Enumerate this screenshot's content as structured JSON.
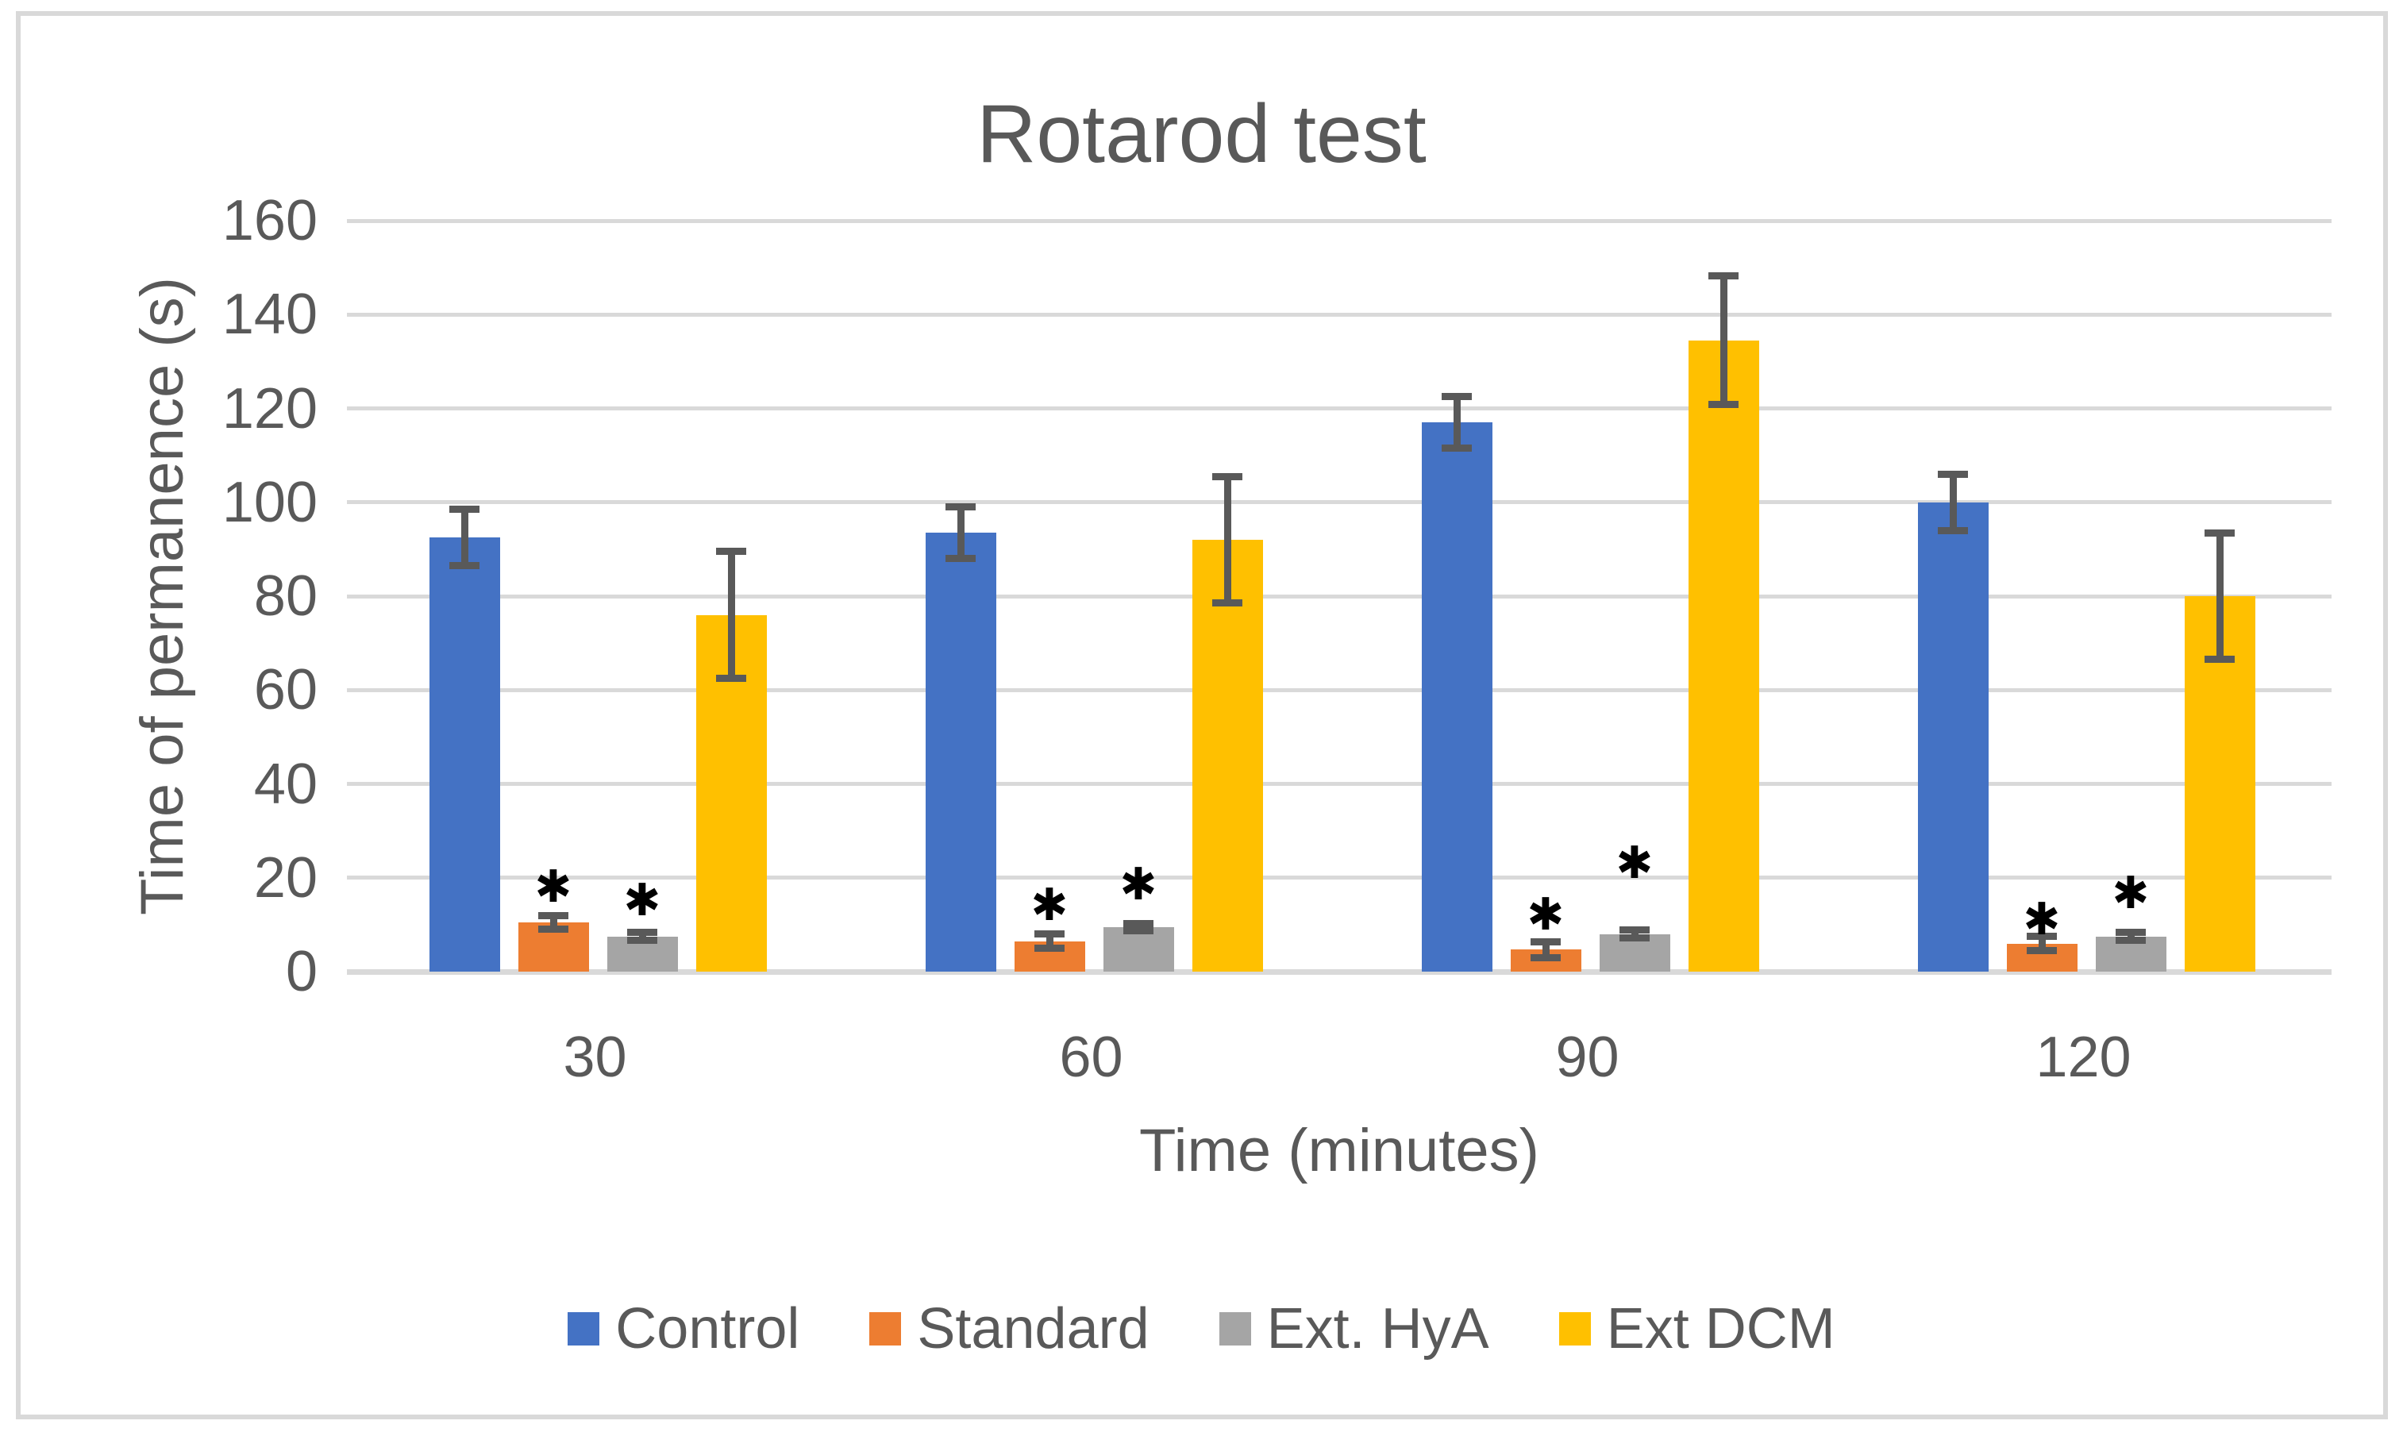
{
  "figure": {
    "title": "Rotarod test",
    "x_axis_title": "Time (minutes)",
    "y_axis_title": "Time of permanence (s)",
    "significance_marker": "✱"
  },
  "chart_data": {
    "type": "bar",
    "title": "Rotarod test",
    "xlabel": "Time (minutes)",
    "ylabel": "Time of permanence (s)",
    "categories": [
      "30",
      "60",
      "90",
      "120"
    ],
    "ylim": [
      0,
      160
    ],
    "ytick_step": 20,
    "y_tick_labels": [
      "0",
      "20",
      "40",
      "60",
      "80",
      "100",
      "120",
      "140",
      "160"
    ],
    "grid": "horizontal-gridlines",
    "legend_position": "bottom",
    "series": [
      {
        "name": "Control",
        "color": "#4472C4",
        "values": [
          92.5,
          93.5,
          117,
          100
        ],
        "error": [
          6,
          5.5,
          5.5,
          6
        ],
        "significant": [
          false,
          false,
          false,
          false
        ],
        "sig_y": [
          0,
          0,
          0,
          0
        ]
      },
      {
        "name": "Standard",
        "color": "#ED7D31",
        "values": [
          10.5,
          6.5,
          4.7,
          6
        ],
        "error": [
          1.5,
          1.5,
          1.7,
          1.5
        ],
        "significant": [
          true,
          true,
          true,
          true
        ],
        "sig_y": [
          18,
          14,
          12,
          11
        ]
      },
      {
        "name": "Ext. HyA",
        "color": "#A5A5A5",
        "values": [
          7.5,
          9.5,
          8,
          7.5
        ],
        "error": [
          0.8,
          0.8,
          0.8,
          0.8
        ],
        "significant": [
          true,
          true,
          true,
          true
        ],
        "sig_y": [
          15,
          18.5,
          23,
          16.5
        ]
      },
      {
        "name": "Ext DCM",
        "color": "#FFC000",
        "values": [
          76,
          92,
          134.5,
          80
        ],
        "error": [
          13.5,
          13.5,
          13.7,
          13.5
        ],
        "significant": [
          false,
          false,
          false,
          false
        ],
        "sig_y": [
          0,
          0,
          0,
          0
        ]
      }
    ]
  },
  "colors": {
    "gridline": "#D9D9D9",
    "figure_border": "#D9D9D9",
    "axis_text": "#595959",
    "error_bar": "#595959",
    "asterisk": "#000000",
    "background": "#FFFFFF"
  }
}
